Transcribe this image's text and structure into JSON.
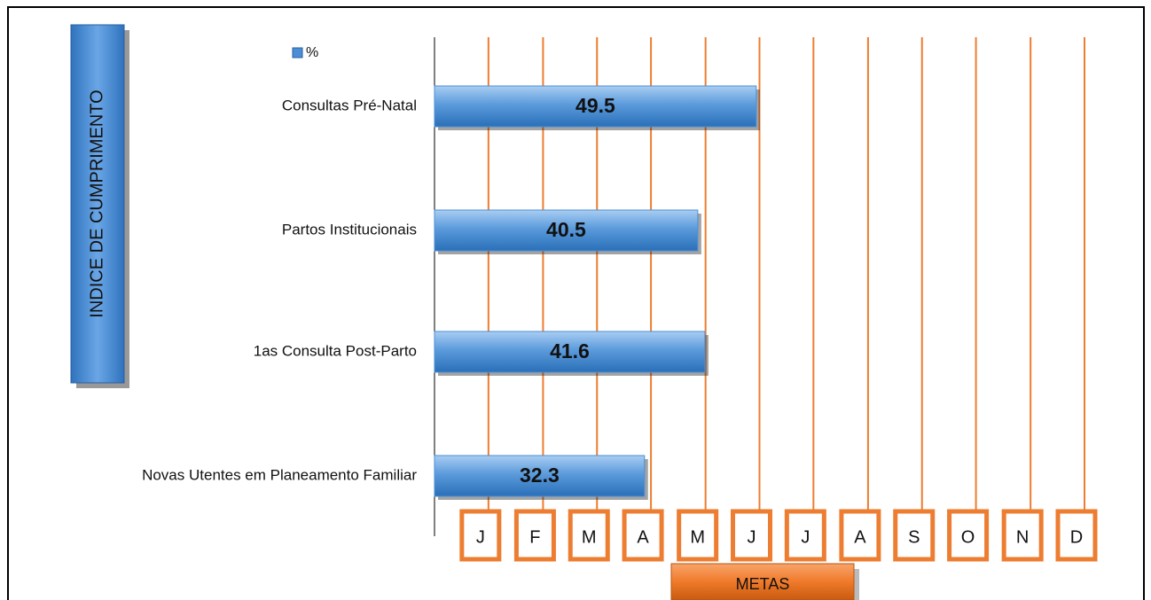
{
  "chart_data": {
    "type": "bar",
    "orientation": "horizontal",
    "y_label": "INDICE DE CUMPRIMENTO",
    "x_label": "METAS",
    "categories": [
      "Consultas Pré-Natal",
      "Partos Institucionais",
      "1as Consulta Post-Parto",
      "Novas Utentes em Planeamento Familiar"
    ],
    "series": [
      {
        "name": "%",
        "color": "#4a8fd6",
        "values": [
          49.5,
          40.5,
          41.6,
          32.3
        ]
      }
    ],
    "xlim": [
      0,
      100
    ],
    "xticks": [
      {
        "value": 8.3,
        "label": "J"
      },
      {
        "value": 16.7,
        "label": "F"
      },
      {
        "value": 25,
        "label": "M"
      },
      {
        "value": 33.3,
        "label": "A"
      },
      {
        "value": 41.7,
        "label": "M"
      },
      {
        "value": 50,
        "label": "J"
      },
      {
        "value": 58.3,
        "label": "J"
      },
      {
        "value": 66.7,
        "label": "A"
      },
      {
        "value": 75,
        "label": "S"
      },
      {
        "value": 83.3,
        "label": "O"
      },
      {
        "value": 91.7,
        "label": "N"
      },
      {
        "value": 100,
        "label": "D"
      }
    ],
    "grid_color": "#ed7d31",
    "grid": true,
    "legend": "top-left"
  }
}
